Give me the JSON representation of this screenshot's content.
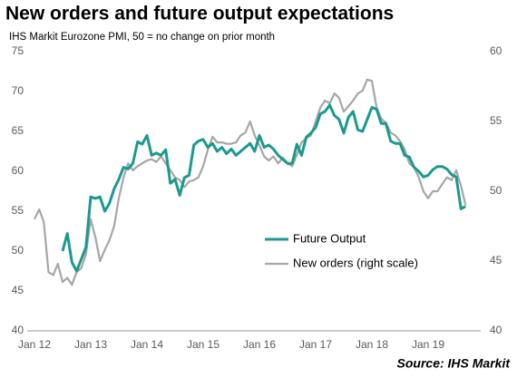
{
  "chart_data": {
    "type": "line",
    "title": "New orders and future output expectations",
    "subtitle": "IHS Markit Eurozone PMI, 50 = no change on prior month",
    "source": "Source: IHS Markit",
    "categories": [
      "Jan 12",
      null,
      null,
      null,
      null,
      null,
      null,
      null,
      null,
      null,
      null,
      null,
      "Jan 13",
      null,
      null,
      null,
      null,
      null,
      null,
      null,
      null,
      null,
      null,
      null,
      "Jan 14",
      null,
      null,
      null,
      null,
      null,
      null,
      null,
      null,
      null,
      null,
      null,
      "Jan 15",
      null,
      null,
      null,
      null,
      null,
      null,
      null,
      null,
      null,
      null,
      null,
      "Jan 16",
      null,
      null,
      null,
      null,
      null,
      null,
      null,
      null,
      null,
      null,
      null,
      "Jan 17",
      null,
      null,
      null,
      null,
      null,
      null,
      null,
      null,
      null,
      null,
      null,
      "Jan 18",
      null,
      null,
      null,
      null,
      null,
      null,
      null,
      null,
      null,
      null,
      null,
      "Jan 19",
      null,
      null,
      null,
      null,
      null,
      null,
      null,
      null
    ],
    "ylim": [
      40,
      75
    ],
    "yticks": [
      40,
      45,
      50,
      55,
      60,
      65,
      70,
      75
    ],
    "y2lim": [
      40,
      60
    ],
    "y2ticks": [
      40,
      45,
      50,
      55,
      60
    ],
    "legend": "center",
    "series": [
      {
        "name": "Future Output",
        "color": "#1a9a8f",
        "values": [
          null,
          null,
          null,
          null,
          null,
          null,
          50.0,
          52.2,
          48.6,
          47.5,
          49.0,
          50.5,
          56.8,
          56.6,
          56.8,
          55.0,
          56.0,
          57.8,
          59.0,
          60.5,
          60.3,
          61.0,
          63.7,
          63.4,
          64.5,
          62.0,
          62.3,
          62.0,
          62.7,
          58.5,
          59.0,
          57.0,
          59.2,
          59.5,
          63.3,
          63.8,
          64.0,
          63.0,
          63.5,
          62.5,
          63.0,
          62.2,
          62.8,
          62.0,
          62.5,
          63.0,
          63.5,
          62.5,
          64.5,
          63.0,
          63.3,
          62.8,
          62.0,
          61.5,
          61.0,
          61.0,
          63.4,
          62.0,
          64.3,
          64.8,
          65.5,
          67.2,
          67.5,
          68.3,
          67.0,
          66.5,
          64.8,
          66.8,
          67.5,
          65.2,
          65.0,
          66.5,
          68.0,
          67.8,
          66.0,
          66.0,
          63.8,
          63.5,
          63.5,
          62.0,
          61.8,
          60.5,
          60.0,
          59.3,
          59.5,
          60.2,
          60.6,
          60.6,
          60.3,
          59.6,
          59.3,
          55.3,
          55.6
        ]
      },
      {
        "name": "New orders (right scale)",
        "color": "#a6a6a6",
        "axis": "y2",
        "values": [
          48.0,
          48.7,
          47.8,
          44.2,
          44.0,
          44.8,
          43.5,
          43.8,
          43.3,
          44.2,
          44.5,
          45.5,
          48.0,
          46.7,
          45.0,
          45.8,
          46.5,
          47.5,
          49.5,
          51.0,
          52.0,
          51.5,
          51.8,
          52.0,
          52.2,
          52.3,
          52.1,
          52.5,
          52.0,
          51.5,
          51.0,
          50.8,
          50.3,
          50.7,
          50.8,
          51.0,
          51.8,
          53.0,
          53.9,
          53.5,
          53.5,
          53.4,
          53.4,
          53.5,
          54.0,
          54.2,
          55.0,
          54.0,
          53.3,
          52.5,
          52.2,
          52.5,
          52.0,
          52.4,
          52.0,
          51.8,
          52.6,
          53.5,
          53.8,
          54.0,
          55.0,
          56.0,
          56.5,
          56.3,
          57.0,
          56.7,
          55.7,
          56.1,
          56.5,
          57.0,
          57.2,
          58.0,
          57.9,
          56.0,
          55.2,
          54.9,
          54.2,
          54.0,
          53.6,
          53.0,
          52.0,
          51.7,
          51.0,
          50.0,
          49.5,
          50.0,
          50.0,
          50.5,
          51.0,
          50.8,
          51.5,
          50.4,
          49.0
        ]
      }
    ]
  }
}
